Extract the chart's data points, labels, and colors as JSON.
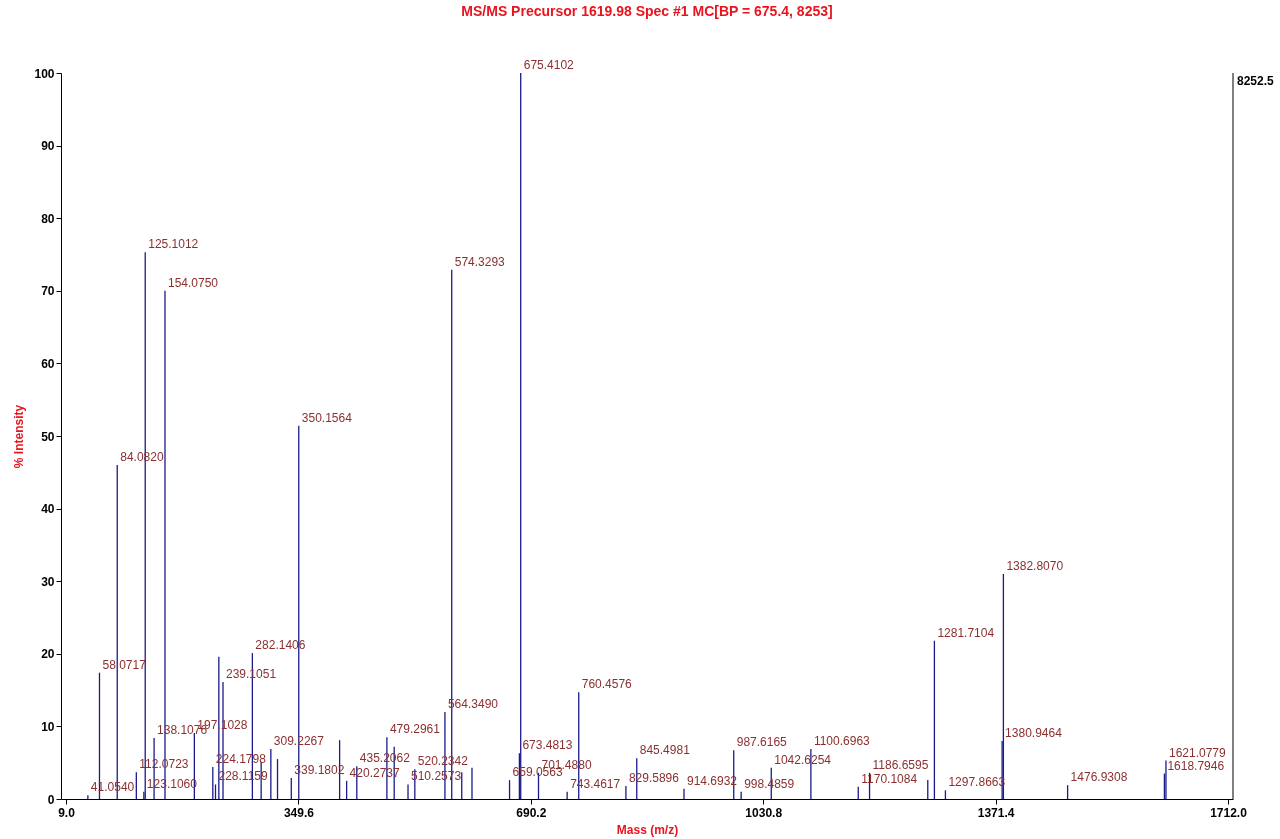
{
  "chart_data": {
    "type": "bar",
    "title": "MS/MS Precursor 1619.98 Spec #1 MC[BP = 675.4, 8253]",
    "xlabel": "Mass (m/z)",
    "ylabel": "% Intensity",
    "color": "#1a1a8c",
    "x": [
      41.054,
      58.0717,
      84.082,
      112.0723,
      123.106,
      125.1012,
      138.1076,
      154.075,
      197.1028,
      224.1798,
      228.1159,
      233,
      239.1051,
      282.1406,
      295,
      309.2267,
      319,
      339.1802,
      350.1564,
      410,
      420.2737,
      435.2062,
      479.2961,
      490,
      510.2573,
      520.2342,
      564.349,
      574.3293,
      589,
      604,
      659.0563,
      673.4813,
      675.4102,
      701.488,
      743.4617,
      760.4576,
      829.5896,
      845.4981,
      914.6932,
      987.6165,
      998.4859,
      1042.6254,
      1100.6963,
      1170.1084,
      1186.6595,
      1272,
      1281.7104,
      1297.8663,
      1380.9464,
      1382.807,
      1476.9308,
      1618.7946,
      1621.0779
    ],
    "values": [
      0.5,
      17.4,
      46.0,
      3.7,
      1.0,
      75.3,
      8.4,
      70.0,
      9.1,
      4.4,
      2.0,
      19.6,
      16.1,
      20.1,
      5.1,
      6.9,
      5.5,
      2.9,
      51.4,
      8.1,
      2.5,
      4.5,
      8.5,
      7.2,
      2.0,
      4.1,
      12.0,
      72.9,
      3.7,
      4.3,
      2.6,
      6.3,
      100,
      3.6,
      1.0,
      14.7,
      1.8,
      5.6,
      1.4,
      6.7,
      1.0,
      4.3,
      6.9,
      1.7,
      3.6,
      2.6,
      21.8,
      1.2,
      8.0,
      31.0,
      1.9,
      3.5,
      5.3
    ],
    "annotations": [
      "8252.5",
      {
        "text": "41.0540",
        "x": 41.054,
        "y": 0.5
      },
      {
        "text": "58.0717",
        "x": 58.0717,
        "y": 17.4
      },
      {
        "text": "84.0820",
        "x": 84.082,
        "y": 46.0
      },
      {
        "text": "112.0723",
        "x": 112.0723,
        "y": 3.7
      },
      {
        "text": "123.1060",
        "x": 123.106,
        "y": 1.0
      },
      {
        "text": "125.1012",
        "x": 125.1012,
        "y": 75.3
      },
      {
        "text": "138.1076",
        "x": 138.1076,
        "y": 8.4
      },
      {
        "text": "154.0750",
        "x": 154.075,
        "y": 70.0
      },
      {
        "text": "197.1028",
        "x": 197.1028,
        "y": 9.1
      },
      {
        "text": "224.1798",
        "x": 224.1798,
        "y": 4.4
      },
      {
        "text": "228.1159",
        "x": 228.1159,
        "y": 2.0
      },
      {
        "text": "239.1051",
        "x": 239.1051,
        "y": 16.1
      },
      {
        "text": "282.1406",
        "x": 282.1406,
        "y": 20.1
      },
      {
        "text": "309.2267",
        "x": 309.2267,
        "y": 6.9
      },
      {
        "text": "339.1802",
        "x": 339.1802,
        "y": 2.9
      },
      {
        "text": "350.1564",
        "x": 350.1564,
        "y": 51.4
      },
      {
        "text": "420.2737",
        "x": 420.2737,
        "y": 2.5
      },
      {
        "text": "435.2062",
        "x": 435.2062,
        "y": 4.5
      },
      {
        "text": "479.2961",
        "x": 479.2961,
        "y": 8.5
      },
      {
        "text": "510.2573",
        "x": 510.2573,
        "y": 2.0
      },
      {
        "text": "520.2342",
        "x": 520.2342,
        "y": 4.1
      },
      {
        "text": "564.3490",
        "x": 564.349,
        "y": 12.0
      },
      {
        "text": "574.3293",
        "x": 574.3293,
        "y": 72.9
      },
      {
        "text": "659.0563",
        "x": 659.0563,
        "y": 2.6
      },
      {
        "text": "673.4813",
        "x": 673.4813,
        "y": 6.3
      },
      {
        "text": "675.4102",
        "x": 675.4102,
        "y": 100
      },
      {
        "text": "701.4880",
        "x": 701.488,
        "y": 3.6
      },
      {
        "text": "743.4617",
        "x": 743.4617,
        "y": 1.0
      },
      {
        "text": "760.4576",
        "x": 760.4576,
        "y": 14.7
      },
      {
        "text": "829.5896",
        "x": 829.5896,
        "y": 1.8
      },
      {
        "text": "845.4981",
        "x": 845.4981,
        "y": 5.6
      },
      {
        "text": "914.6932",
        "x": 914.6932,
        "y": 1.4
      },
      {
        "text": "987.6165",
        "x": 987.6165,
        "y": 6.7
      },
      {
        "text": "998.4859",
        "x": 998.4859,
        "y": 1.0
      },
      {
        "text": "1042.6254",
        "x": 1042.6254,
        "y": 4.3
      },
      {
        "text": "1100.6963",
        "x": 1100.6963,
        "y": 6.9
      },
      {
        "text": "1170.1084",
        "x": 1170.1084,
        "y": 1.7
      },
      {
        "text": "1186.6595",
        "x": 1186.6595,
        "y": 3.6
      },
      {
        "text": "1281.7104",
        "x": 1281.7104,
        "y": 21.8
      },
      {
        "text": "1297.8663",
        "x": 1297.8663,
        "y": 1.2
      },
      {
        "text": "1380.9464",
        "x": 1380.9464,
        "y": 8.0
      },
      {
        "text": "1382.8070",
        "x": 1382.807,
        "y": 31.0
      },
      {
        "text": "1476.9308",
        "x": 1476.9308,
        "y": 1.9
      },
      {
        "text": "1618.7946",
        "x": 1618.7946,
        "y": 3.5
      },
      {
        "text": "1621.0779",
        "x": 1621.0779,
        "y": 5.3
      }
    ],
    "xlim": [
      9,
      1712
    ],
    "xticks": [
      {
        "value": 9,
        "label": "9.0"
      },
      349.6,
      690.2,
      1030.8,
      1371.4,
      {
        "value": 1712,
        "label": "1712.0"
      }
    ],
    "ylim": [
      0,
      100
    ],
    "yticks": [
      0,
      10,
      20,
      30,
      40,
      50,
      60,
      70,
      80,
      90,
      100
    ]
  }
}
